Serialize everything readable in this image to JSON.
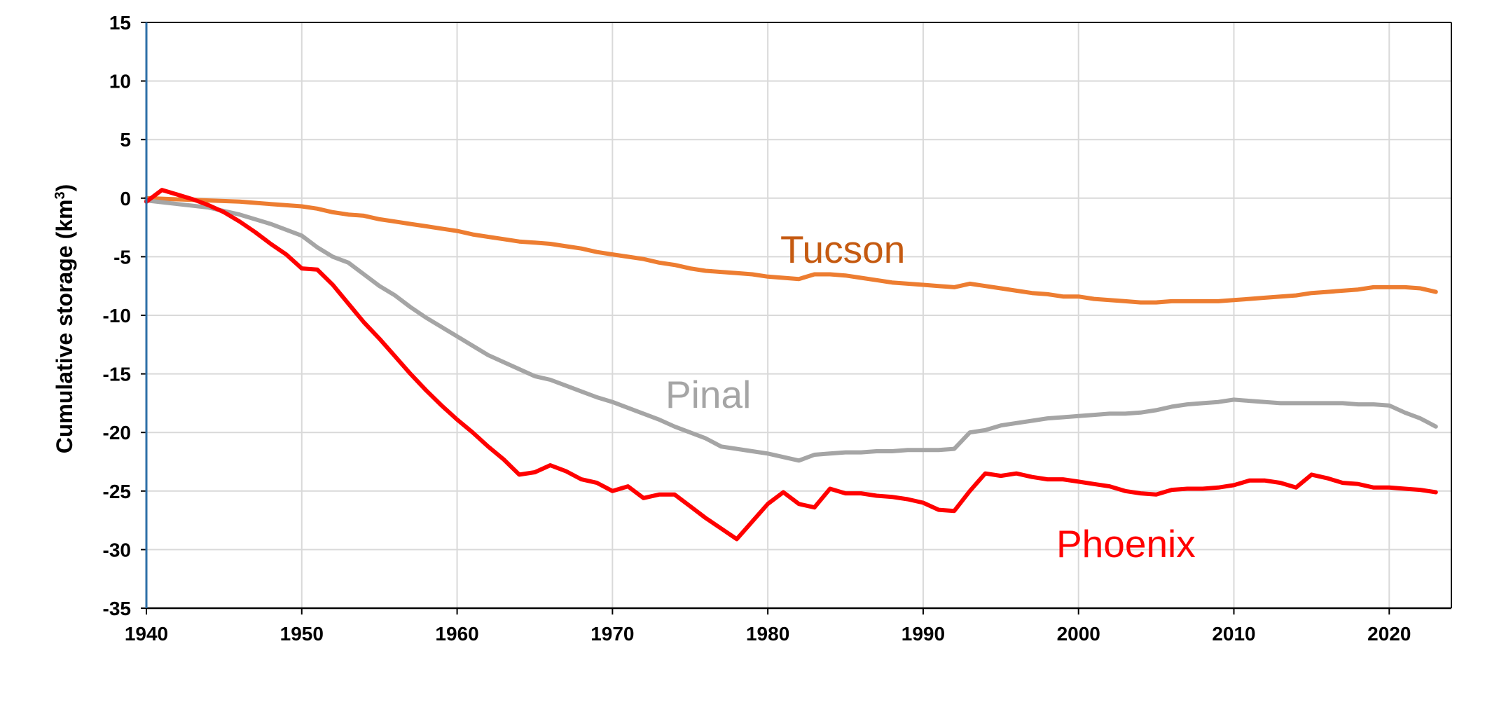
{
  "chart_data": {
    "type": "line",
    "title": "",
    "xlabel": "",
    "ylabel": "Cumulative storage (km",
    "ylabel_superscript": "3",
    "ylabel_close": ")",
    "xlim": [
      1940,
      2024
    ],
    "ylim": [
      -35,
      15
    ],
    "x_ticks": [
      1940,
      1950,
      1960,
      1970,
      1980,
      1990,
      2000,
      2010,
      2020
    ],
    "y_ticks": [
      15,
      10,
      5,
      0,
      -5,
      -10,
      -15,
      -20,
      -25,
      -30,
      -35
    ],
    "grid": true,
    "legend": "none (series labelled directly on the plot)",
    "series": [
      {
        "name": "Tucson",
        "color": "#ED7D31",
        "label_color": "#C55A11",
        "x": [
          1940,
          1942,
          1944,
          1946,
          1948,
          1950,
          1951,
          1952,
          1953,
          1954,
          1955,
          1956,
          1957,
          1958,
          1959,
          1960,
          1961,
          1962,
          1963,
          1964,
          1965,
          1966,
          1967,
          1968,
          1969,
          1970,
          1971,
          1972,
          1973,
          1974,
          1975,
          1976,
          1977,
          1978,
          1979,
          1980,
          1981,
          1982,
          1983,
          1984,
          1985,
          1986,
          1987,
          1988,
          1989,
          1990,
          1991,
          1992,
          1993,
          1994,
          1995,
          1996,
          1997,
          1998,
          1999,
          2000,
          2001,
          2002,
          2003,
          2004,
          2005,
          2006,
          2007,
          2008,
          2009,
          2010,
          2011,
          2012,
          2013,
          2014,
          2015,
          2016,
          2017,
          2018,
          2019,
          2020,
          2021,
          2022,
          2023
        ],
        "values": [
          0,
          -0.1,
          -0.2,
          -0.3,
          -0.5,
          -0.7,
          -0.9,
          -1.2,
          -1.4,
          -1.5,
          -1.8,
          -2.0,
          -2.2,
          -2.4,
          -2.6,
          -2.8,
          -3.1,
          -3.3,
          -3.5,
          -3.7,
          -3.8,
          -3.9,
          -4.1,
          -4.3,
          -4.6,
          -4.8,
          -5.0,
          -5.2,
          -5.5,
          -5.7,
          -6.0,
          -6.2,
          -6.3,
          -6.4,
          -6.5,
          -6.7,
          -6.8,
          -6.9,
          -6.5,
          -6.5,
          -6.6,
          -6.8,
          -7.0,
          -7.2,
          -7.3,
          -7.4,
          -7.5,
          -7.6,
          -7.3,
          -7.5,
          -7.7,
          -7.9,
          -8.1,
          -8.2,
          -8.4,
          -8.4,
          -8.6,
          -8.7,
          -8.8,
          -8.9,
          -8.9,
          -8.8,
          -8.8,
          -8.8,
          -8.8,
          -8.7,
          -8.6,
          -8.5,
          -8.4,
          -8.3,
          -8.1,
          -8.0,
          -7.9,
          -7.8,
          -7.6,
          -7.6,
          -7.6,
          -7.7,
          -8.0
        ]
      },
      {
        "name": "Pinal",
        "color": "#A5A5A5",
        "label_color": "#A5A5A5",
        "x": [
          1940,
          1942,
          1944,
          1946,
          1948,
          1950,
          1951,
          1952,
          1953,
          1954,
          1955,
          1956,
          1957,
          1958,
          1959,
          1960,
          1961,
          1962,
          1963,
          1964,
          1965,
          1966,
          1967,
          1968,
          1969,
          1970,
          1971,
          1972,
          1973,
          1974,
          1975,
          1976,
          1977,
          1978,
          1979,
          1980,
          1981,
          1982,
          1983,
          1984,
          1985,
          1986,
          1987,
          1988,
          1989,
          1990,
          1991,
          1992,
          1993,
          1994,
          1995,
          1996,
          1997,
          1998,
          1999,
          2000,
          2001,
          2002,
          2003,
          2004,
          2005,
          2006,
          2007,
          2008,
          2009,
          2010,
          2011,
          2012,
          2013,
          2014,
          2015,
          2016,
          2017,
          2018,
          2019,
          2020,
          2021,
          2022,
          2023
        ],
        "values": [
          -0.2,
          -0.5,
          -0.8,
          -1.4,
          -2.2,
          -3.2,
          -4.2,
          -5.0,
          -5.5,
          -6.5,
          -7.5,
          -8.3,
          -9.3,
          -10.2,
          -11.0,
          -11.8,
          -12.6,
          -13.4,
          -14.0,
          -14.6,
          -15.2,
          -15.5,
          -16.0,
          -16.5,
          -17.0,
          -17.4,
          -17.9,
          -18.4,
          -18.9,
          -19.5,
          -20.0,
          -20.5,
          -21.2,
          -21.4,
          -21.6,
          -21.8,
          -22.1,
          -22.4,
          -21.9,
          -21.8,
          -21.7,
          -21.7,
          -21.6,
          -21.6,
          -21.5,
          -21.5,
          -21.5,
          -21.4,
          -20.0,
          -19.8,
          -19.4,
          -19.2,
          -19.0,
          -18.8,
          -18.7,
          -18.6,
          -18.5,
          -18.4,
          -18.4,
          -18.3,
          -18.1,
          -17.8,
          -17.6,
          -17.5,
          -17.4,
          -17.2,
          -17.3,
          -17.4,
          -17.5,
          -17.5,
          -17.5,
          -17.5,
          -17.5,
          -17.6,
          -17.6,
          -17.7,
          -18.3,
          -18.8,
          -19.5
        ]
      },
      {
        "name": "Phoenix",
        "color": "#FF0000",
        "label_color": "#FF0000",
        "x": [
          1940,
          1941,
          1942,
          1943,
          1944,
          1945,
          1946,
          1947,
          1948,
          1949,
          1950,
          1951,
          1952,
          1953,
          1954,
          1955,
          1956,
          1957,
          1958,
          1959,
          1960,
          1961,
          1962,
          1963,
          1964,
          1965,
          1966,
          1967,
          1968,
          1969,
          1970,
          1971,
          1972,
          1973,
          1974,
          1975,
          1976,
          1977,
          1978,
          1979,
          1980,
          1981,
          1982,
          1983,
          1984,
          1985,
          1986,
          1987,
          1988,
          1989,
          1990,
          1991,
          1992,
          1993,
          1994,
          1995,
          1996,
          1997,
          1998,
          1999,
          2000,
          2001,
          2002,
          2003,
          2004,
          2005,
          2006,
          2007,
          2008,
          2009,
          2010,
          2011,
          2012,
          2013,
          2014,
          2015,
          2016,
          2017,
          2018,
          2019,
          2020,
          2021,
          2022,
          2023
        ],
        "values": [
          -0.3,
          0.7,
          0.3,
          -0.1,
          -0.6,
          -1.2,
          -2.0,
          -2.9,
          -3.9,
          -4.8,
          -6.0,
          -6.1,
          -7.4,
          -9.0,
          -10.6,
          -12.0,
          -13.5,
          -15.0,
          -16.4,
          -17.7,
          -18.9,
          -20.0,
          -21.2,
          -22.3,
          -23.6,
          -23.4,
          -22.8,
          -23.3,
          -24.0,
          -24.3,
          -25.0,
          -24.6,
          -25.6,
          -25.3,
          -25.3,
          -26.3,
          -27.3,
          -28.2,
          -29.1,
          -27.6,
          -26.1,
          -25.1,
          -26.1,
          -26.4,
          -24.8,
          -25.2,
          -25.2,
          -25.4,
          -25.5,
          -25.7,
          -26.0,
          -26.6,
          -26.7,
          -25.0,
          -23.5,
          -23.7,
          -23.5,
          -23.8,
          -24.0,
          -24.0,
          -24.2,
          -24.4,
          -24.6,
          -25.0,
          -25.2,
          -25.3,
          -24.9,
          -24.8,
          -24.8,
          -24.7,
          -24.5,
          -24.1,
          -24.1,
          -24.3,
          -24.7,
          -23.6,
          -23.9,
          -24.3,
          -24.4,
          -24.7,
          -24.7,
          -24.8,
          -24.9,
          -25.1
        ]
      }
    ]
  }
}
